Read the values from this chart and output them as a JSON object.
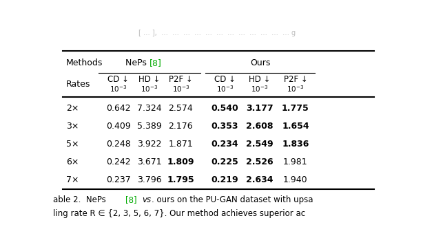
{
  "col_headers": [
    "CD ↓",
    "HD ↓",
    "P2F ↓",
    "CD ↓",
    "HD ↓",
    "P2F ↓"
  ],
  "rows": [
    {
      "rate": "2×",
      "neps": [
        "0.642",
        "7.324",
        "2.574"
      ],
      "ours": [
        "0.540",
        "3.177",
        "1.775"
      ],
      "neps_bold": [
        false,
        false,
        false
      ],
      "ours_bold": [
        true,
        true,
        true
      ]
    },
    {
      "rate": "3×",
      "neps": [
        "0.409",
        "5.389",
        "2.176"
      ],
      "ours": [
        "0.353",
        "2.608",
        "1.654"
      ],
      "neps_bold": [
        false,
        false,
        false
      ],
      "ours_bold": [
        true,
        true,
        true
      ]
    },
    {
      "rate": "5×",
      "neps": [
        "0.248",
        "3.922",
        "1.871"
      ],
      "ours": [
        "0.234",
        "2.549",
        "1.836"
      ],
      "neps_bold": [
        false,
        false,
        false
      ],
      "ours_bold": [
        true,
        true,
        true
      ]
    },
    {
      "rate": "6×",
      "neps": [
        "0.242",
        "3.671",
        "1.809"
      ],
      "ours": [
        "0.225",
        "2.526",
        "1.981"
      ],
      "neps_bold": [
        false,
        false,
        true
      ],
      "ours_bold": [
        true,
        true,
        false
      ]
    },
    {
      "rate": "7×",
      "neps": [
        "0.237",
        "3.796",
        "1.795"
      ],
      "ours": [
        "0.219",
        "2.634",
        "1.940"
      ],
      "neps_bold": [
        false,
        false,
        true
      ],
      "ours_bold": [
        true,
        true,
        false
      ]
    }
  ],
  "neps_ref_color": "#00aa00",
  "background_color": "#ffffff",
  "caption1": "able 2.  NePs [8] ",
  "caption1b": "vs",
  "caption1c": ". ours on the PU-GAN dataset with upsa",
  "caption2": "ling rate R ∈ {2, 3, 5, 6, 7}. Our method achieves superior ac",
  "top_text": "[ … ],  …  …  …  …  …  …  …  …  …  …  …  … g"
}
